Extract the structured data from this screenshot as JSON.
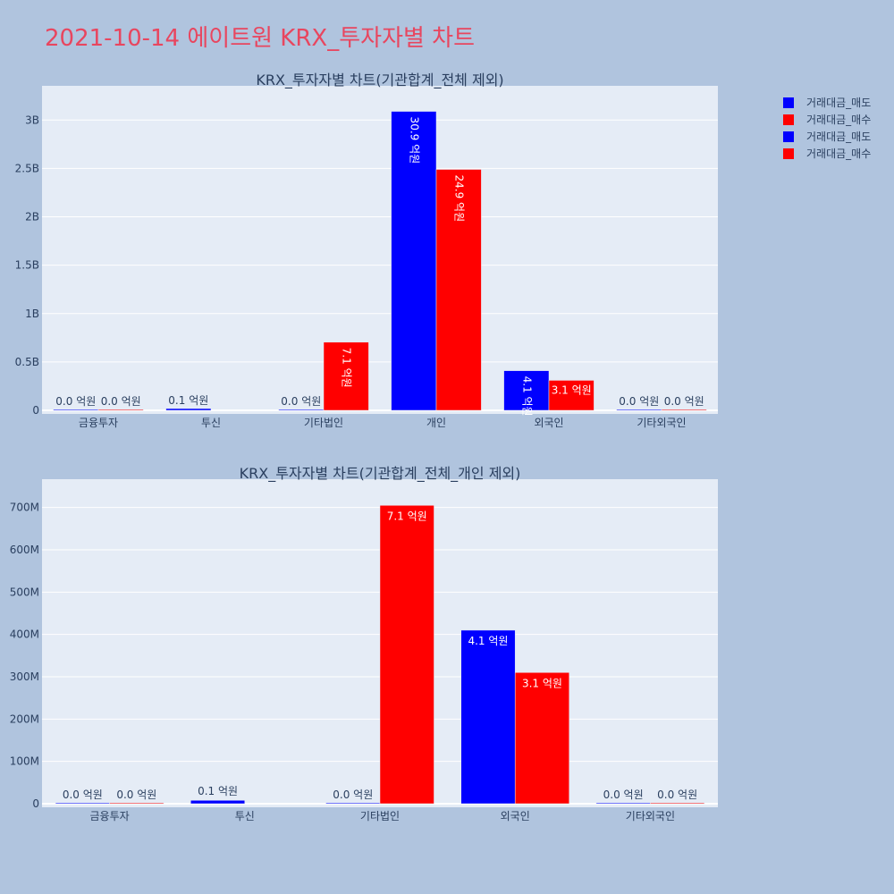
{
  "title": "2021-10-14 에이트원 KRX_투자자별 차트",
  "colors": {
    "sell": "#0000ff",
    "buy": "#ff0000",
    "plot_bg": "#e5ecf6",
    "paper_bg": "#b0c4de"
  },
  "legend": [
    "거래대금_매도",
    "거래대금_매수",
    "거래대금_매도",
    "거래대금_매수"
  ],
  "chart_data": [
    {
      "type": "bar",
      "title": "KRX_투자자별 차트(기관합계_전체 제외)",
      "categories": [
        "금융투자",
        "투신",
        "기타법인",
        "개인",
        "외국인",
        "기타외국인"
      ],
      "series": [
        {
          "name": "거래대금_매도",
          "color": "#0000ff",
          "values": [
            0,
            8000000,
            0,
            3090000000,
            410000000,
            0
          ],
          "labels": [
            "0.0 억원",
            "0.1 억원",
            "0.0 억원",
            "30.9 억원",
            "4.1 억원",
            "0.0 억원"
          ]
        },
        {
          "name": "거래대금_매수",
          "color": "#ff0000",
          "values": [
            0,
            null,
            705000000,
            2490000000,
            310000000,
            0
          ],
          "labels": [
            "0.0 억원",
            "",
            "7.1 억원",
            "24.9 억원",
            "3.1 억원",
            "0.0 억원"
          ]
        }
      ],
      "yticks": [
        0,
        500000000,
        1000000000,
        1500000000,
        2000000000,
        2500000000,
        3000000000
      ],
      "ytick_labels": [
        "0",
        "0.5B",
        "1B",
        "1.5B",
        "2B",
        "2.5B",
        "3B"
      ],
      "ylim": [
        0,
        3280000000
      ],
      "grid": true
    },
    {
      "type": "bar",
      "title": "KRX_투자자별 차트(기관합계_전체_개인 제외)",
      "categories": [
        "금융투자",
        "투신",
        "기타법인",
        "외국인",
        "기타외국인"
      ],
      "series": [
        {
          "name": "거래대금_매도",
          "color": "#0000ff",
          "values": [
            0,
            8000000,
            0,
            410000000,
            0
          ],
          "labels": [
            "0.0 억원",
            "0.1 억원",
            "0.0 억원",
            "4.1 억원",
            "0.0 억원"
          ]
        },
        {
          "name": "거래대금_매수",
          "color": "#ff0000",
          "values": [
            0,
            null,
            705000000,
            310000000,
            0
          ],
          "labels": [
            "0.0 억원",
            "",
            "7.1 억원",
            "3.1 억원",
            "0.0 억원"
          ]
        }
      ],
      "yticks": [
        0,
        100000000,
        200000000,
        300000000,
        400000000,
        500000000,
        600000000,
        700000000
      ],
      "ytick_labels": [
        "0",
        "100M",
        "200M",
        "300M",
        "400M",
        "500M",
        "600M",
        "700M"
      ],
      "ylim": [
        0,
        750000000
      ],
      "grid": true
    }
  ]
}
